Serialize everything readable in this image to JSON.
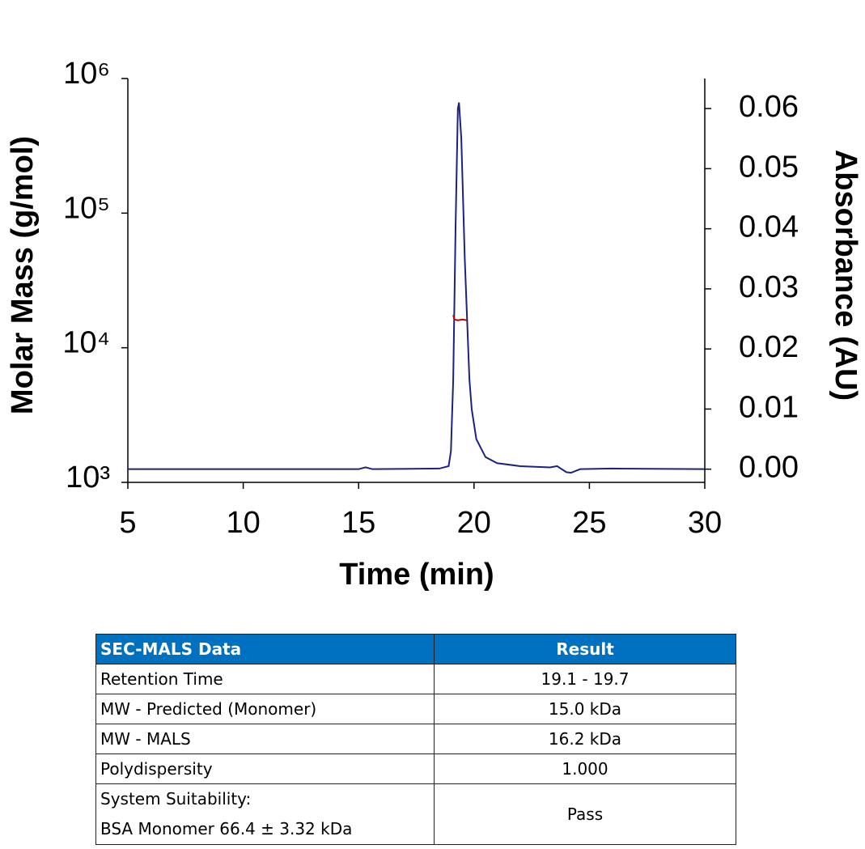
{
  "chart_data": {
    "type": "line",
    "xlabel": "Time (min)",
    "ylabel": "Molar Mass (g/mol)",
    "y2label": "Absorbance (AU)",
    "xlim": [
      5,
      30
    ],
    "xticks": [
      5,
      10,
      15,
      20,
      25,
      30
    ],
    "ylim": [
      1000,
      1000000
    ],
    "ylog": true,
    "yticks": [
      {
        "value": 1000,
        "label": "10³"
      },
      {
        "value": 10000,
        "label": "10⁴"
      },
      {
        "value": 100000,
        "label": "10⁵"
      },
      {
        "value": 1000000,
        "label": "10⁶"
      }
    ],
    "y2lim": [
      -0.0022,
      0.065
    ],
    "y2ticks": [
      {
        "value": 0,
        "label": "0.00"
      },
      0.01,
      0.02,
      0.03,
      0.04,
      0.05,
      0.06
    ],
    "series": [
      {
        "color": "#1a237e",
        "axis": "y2",
        "x": [
          5,
          15,
          15.3,
          15.6,
          18.5,
          18.9,
          19.0,
          19.1,
          19.2,
          19.3,
          19.35,
          19.45,
          19.6,
          19.7,
          19.8,
          19.9,
          20.1,
          20.5,
          21,
          22,
          23.3,
          23.6,
          24.0,
          24.2,
          24.6,
          26,
          30
        ],
        "values": [
          0.0,
          0.0,
          0.0003,
          0.0,
          0.0001,
          0.0005,
          0.003,
          0.015,
          0.04,
          0.06,
          0.061,
          0.055,
          0.035,
          0.025,
          0.015,
          0.01,
          0.005,
          0.002,
          0.001,
          0.0005,
          0.0003,
          0.0005,
          -0.0005,
          -0.0006,
          0.0,
          0.0001,
          0.0
        ]
      },
      {
        "color": "#c00000",
        "axis": "y",
        "x": [
          19.1,
          19.15,
          19.3,
          19.5,
          19.7
        ],
        "values": [
          17500,
          16200,
          16000,
          16200,
          16000
        ]
      }
    ]
  },
  "table": {
    "header": [
      "SEC-MALS Data",
      "Result"
    ],
    "rows": [
      [
        [
          "Retention Time"
        ],
        "19.1 - 19.7"
      ],
      [
        [
          "MW - Predicted (Monomer)"
        ],
        "15.0 kDa"
      ],
      [
        [
          "MW - MALS"
        ],
        "16.2 kDa"
      ],
      [
        [
          "Polydispersity"
        ],
        "1.000"
      ],
      [
        [
          "System Suitability:",
          "BSA Monomer 66.4 ± 3.32 kDa"
        ],
        "Pass"
      ]
    ]
  }
}
